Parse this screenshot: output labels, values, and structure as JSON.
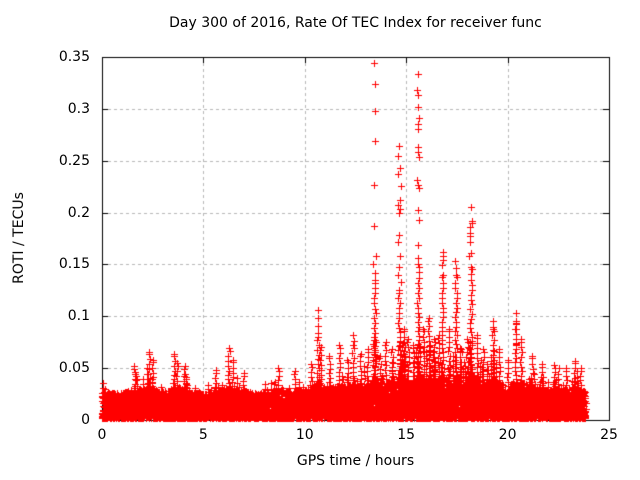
{
  "chart_data": {
    "type": "scatter",
    "title": "Day 300 of 2016, Rate Of TEC Index for receiver func",
    "xlabel": "GPS time / hours",
    "ylabel": "ROTI / TECUs",
    "xlim": [
      0,
      25
    ],
    "ylim": [
      0,
      0.35
    ],
    "xticks": [
      "0",
      "5",
      "10",
      "15",
      "20",
      "25"
    ],
    "yticks": [
      "0",
      "0.05",
      "0.1",
      "0.15",
      "0.2",
      "0.25",
      "0.3",
      "0.35"
    ],
    "grid": "dotted gray gridlines at every major tick, mirrored inner tick marks on all four borders",
    "legend": false,
    "marker": "plus",
    "colors": {
      "points": "#ff0000",
      "grid": "#b8b8b8",
      "axis": "#000000",
      "background": "#ffffff",
      "text": "#000000"
    },
    "x_data_range": [
      0,
      23.85
    ],
    "description": "Dense band of red '+' markers between ROTI 0 and ~0.03 TECUs across 0-24 h, with spiky vertical clusters; strong activity 10.5-21 h; tallest spikes near 13.5 h (0.344) and 15.6 h (0.334).",
    "baseline_envelope": [
      [
        0,
        0.048
      ],
      [
        0.3,
        0.038
      ],
      [
        0.8,
        0.036
      ],
      [
        1.3,
        0.045
      ],
      [
        1.6,
        0.05
      ],
      [
        2.0,
        0.048
      ],
      [
        2.3,
        0.06
      ],
      [
        2.7,
        0.045
      ],
      [
        3.1,
        0.042
      ],
      [
        3.6,
        0.058
      ],
      [
        4.0,
        0.05
      ],
      [
        4.5,
        0.042
      ],
      [
        5.0,
        0.036
      ],
      [
        5.5,
        0.044
      ],
      [
        6.0,
        0.05
      ],
      [
        6.3,
        0.06
      ],
      [
        6.7,
        0.048
      ],
      [
        7.2,
        0.042
      ],
      [
        7.7,
        0.04
      ],
      [
        8.2,
        0.042
      ],
      [
        8.7,
        0.048
      ],
      [
        9.2,
        0.044
      ],
      [
        9.7,
        0.046
      ],
      [
        10.2,
        0.05
      ],
      [
        10.65,
        0.075
      ],
      [
        11.0,
        0.055
      ],
      [
        11.4,
        0.058
      ],
      [
        11.8,
        0.062
      ],
      [
        12.1,
        0.055
      ],
      [
        12.4,
        0.068
      ],
      [
        12.8,
        0.058
      ],
      [
        13.1,
        0.062
      ],
      [
        13.45,
        0.085
      ],
      [
        13.8,
        0.06
      ],
      [
        14.1,
        0.068
      ],
      [
        14.4,
        0.064
      ],
      [
        14.7,
        0.09
      ],
      [
        15.0,
        0.075
      ],
      [
        15.3,
        0.068
      ],
      [
        15.6,
        0.095
      ],
      [
        15.9,
        0.08
      ],
      [
        16.2,
        0.085
      ],
      [
        16.5,
        0.075
      ],
      [
        16.8,
        0.09
      ],
      [
        17.1,
        0.078
      ],
      [
        17.45,
        0.09
      ],
      [
        17.8,
        0.065
      ],
      [
        18.2,
        0.095
      ],
      [
        18.6,
        0.075
      ],
      [
        18.9,
        0.065
      ],
      [
        19.3,
        0.08
      ],
      [
        19.7,
        0.065
      ],
      [
        20.0,
        0.055
      ],
      [
        20.4,
        0.08
      ],
      [
        20.8,
        0.068
      ],
      [
        21.2,
        0.06
      ],
      [
        21.6,
        0.052
      ],
      [
        22.0,
        0.05
      ],
      [
        22.4,
        0.052
      ],
      [
        22.9,
        0.048
      ],
      [
        23.3,
        0.055
      ],
      [
        23.6,
        0.05
      ],
      [
        23.85,
        0.046
      ]
    ],
    "spike_columns": [
      {
        "x": 1.6,
        "top": 0.052
      },
      {
        "x": 2.3,
        "top": 0.066
      },
      {
        "x": 2.5,
        "top": 0.058
      },
      {
        "x": 3.55,
        "top": 0.064
      },
      {
        "x": 3.7,
        "top": 0.055
      },
      {
        "x": 4.1,
        "top": 0.052
      },
      {
        "x": 5.6,
        "top": 0.048
      },
      {
        "x": 6.25,
        "top": 0.069
      },
      {
        "x": 6.45,
        "top": 0.058
      },
      {
        "x": 7.0,
        "top": 0.045
      },
      {
        "x": 8.7,
        "top": 0.05
      },
      {
        "x": 9.5,
        "top": 0.047
      },
      {
        "x": 10.3,
        "top": 0.054
      },
      {
        "x": 10.65,
        "top": 0.08
      },
      {
        "x": 10.78,
        "top": 0.07
      },
      {
        "x": 11.2,
        "top": 0.062
      },
      {
        "x": 11.7,
        "top": 0.072
      },
      {
        "x": 12.1,
        "top": 0.058
      },
      {
        "x": 12.4,
        "top": 0.072
      },
      {
        "x": 12.75,
        "top": 0.064
      },
      {
        "x": 13.1,
        "top": 0.068
      },
      {
        "x": 13.45,
        "top": 0.135
      },
      {
        "x": 13.7,
        "top": 0.062
      },
      {
        "x": 14.0,
        "top": 0.075
      },
      {
        "x": 14.3,
        "top": 0.068
      },
      {
        "x": 14.65,
        "top": 0.125
      },
      {
        "x": 14.9,
        "top": 0.088
      },
      {
        "x": 15.1,
        "top": 0.078
      },
      {
        "x": 15.35,
        "top": 0.072
      },
      {
        "x": 15.6,
        "top": 0.15
      },
      {
        "x": 15.85,
        "top": 0.088
      },
      {
        "x": 16.1,
        "top": 0.098
      },
      {
        "x": 16.35,
        "top": 0.078
      },
      {
        "x": 16.6,
        "top": 0.082
      },
      {
        "x": 16.8,
        "top": 0.14
      },
      {
        "x": 17.1,
        "top": 0.088
      },
      {
        "x": 17.45,
        "top": 0.14
      },
      {
        "x": 17.7,
        "top": 0.068
      },
      {
        "x": 18.0,
        "top": 0.078
      },
      {
        "x": 18.2,
        "top": 0.148
      },
      {
        "x": 18.5,
        "top": 0.082
      },
      {
        "x": 18.8,
        "top": 0.068
      },
      {
        "x": 19.3,
        "top": 0.09
      },
      {
        "x": 19.6,
        "top": 0.068
      },
      {
        "x": 20.0,
        "top": 0.058
      },
      {
        "x": 20.4,
        "top": 0.095
      },
      {
        "x": 20.65,
        "top": 0.078
      },
      {
        "x": 21.2,
        "top": 0.062
      },
      {
        "x": 21.7,
        "top": 0.054
      },
      {
        "x": 22.3,
        "top": 0.053
      },
      {
        "x": 22.9,
        "top": 0.05
      },
      {
        "x": 23.3,
        "top": 0.057
      },
      {
        "x": 23.6,
        "top": 0.05
      }
    ],
    "outlier_points": [
      [
        13.4,
        0.344
      ],
      [
        13.46,
        0.324
      ],
      [
        13.46,
        0.298
      ],
      [
        13.45,
        0.269
      ],
      [
        13.4,
        0.227
      ],
      [
        13.42,
        0.187
      ],
      [
        13.5,
        0.158
      ],
      [
        13.38,
        0.15
      ],
      [
        13.44,
        0.142
      ],
      [
        15.6,
        0.334
      ],
      [
        15.55,
        0.318
      ],
      [
        15.58,
        0.313
      ],
      [
        15.57,
        0.302
      ],
      [
        15.63,
        0.291
      ],
      [
        15.58,
        0.285
      ],
      [
        15.6,
        0.281
      ],
      [
        15.57,
        0.263
      ],
      [
        15.6,
        0.258
      ],
      [
        15.62,
        0.254
      ],
      [
        15.55,
        0.231
      ],
      [
        15.6,
        0.227
      ],
      [
        15.64,
        0.224
      ],
      [
        15.57,
        0.202
      ],
      [
        15.62,
        0.193
      ],
      [
        15.6,
        0.169
      ],
      [
        15.58,
        0.156
      ],
      [
        14.65,
        0.264
      ],
      [
        14.6,
        0.255
      ],
      [
        14.68,
        0.243
      ],
      [
        14.6,
        0.237
      ],
      [
        14.72,
        0.226
      ],
      [
        14.7,
        0.212
      ],
      [
        14.62,
        0.207
      ],
      [
        14.68,
        0.203
      ],
      [
        14.66,
        0.2
      ],
      [
        14.64,
        0.178
      ],
      [
        14.6,
        0.172
      ],
      [
        14.7,
        0.158
      ],
      [
        14.66,
        0.148
      ],
      [
        14.6,
        0.14
      ],
      [
        14.72,
        0.133
      ],
      [
        18.2,
        0.205
      ],
      [
        18.24,
        0.192
      ],
      [
        18.26,
        0.19
      ],
      [
        18.15,
        0.186
      ],
      [
        18.15,
        0.18
      ],
      [
        18.17,
        0.177
      ],
      [
        18.16,
        0.172
      ],
      [
        18.2,
        0.161
      ],
      [
        18.1,
        0.158
      ],
      [
        16.8,
        0.162
      ],
      [
        16.8,
        0.158
      ],
      [
        16.82,
        0.154
      ],
      [
        16.78,
        0.149
      ],
      [
        17.42,
        0.153
      ],
      [
        17.45,
        0.147
      ],
      [
        10.65,
        0.106
      ],
      [
        10.63,
        0.098
      ],
      [
        10.67,
        0.091
      ],
      [
        10.65,
        0.084
      ],
      [
        20.4,
        0.103
      ],
      [
        20.42,
        0.094
      ],
      [
        20.38,
        0.088
      ],
      [
        20.4,
        0.074
      ],
      [
        20.41,
        0.072
      ],
      [
        19.3,
        0.095
      ],
      [
        19.28,
        0.09
      ],
      [
        19.32,
        0.086
      ],
      [
        12.4,
        0.082
      ],
      [
        12.42,
        0.076
      ]
    ],
    "render": {
      "seed": 20161026,
      "band_points": 9000,
      "tree_spacing": 0.085
    }
  }
}
